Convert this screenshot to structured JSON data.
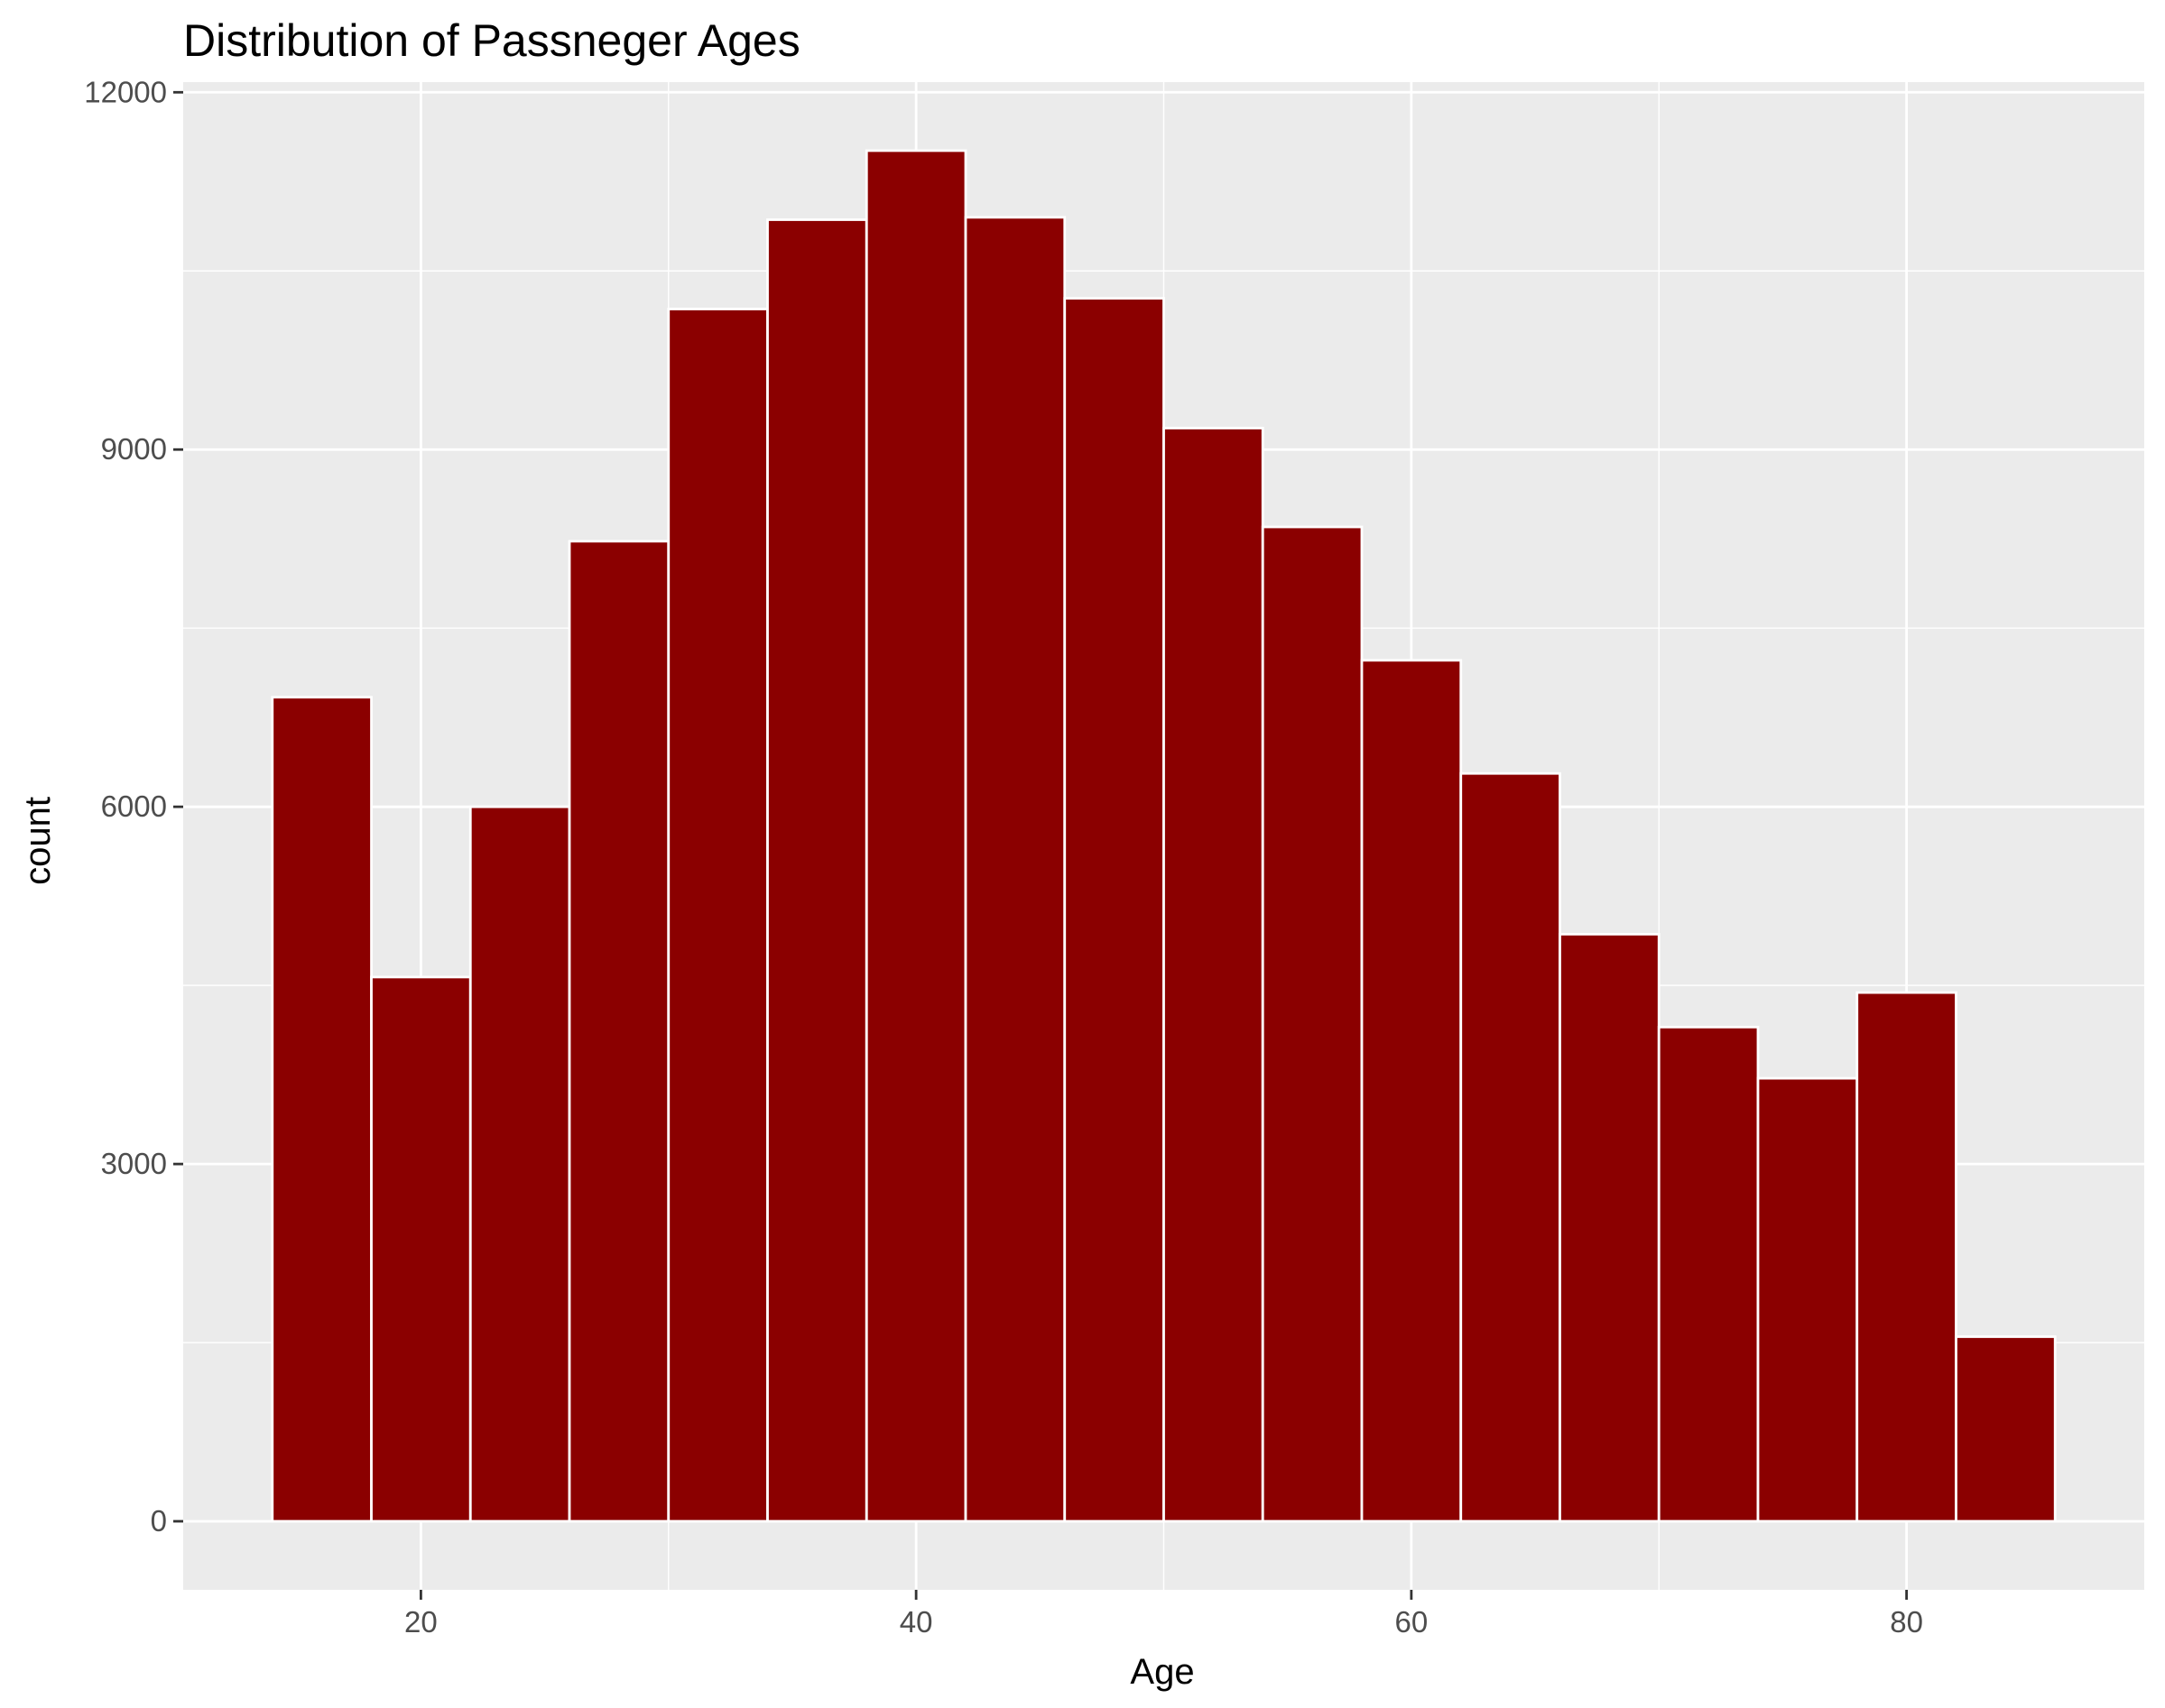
{
  "chart_data": {
    "type": "bar",
    "title": "Distribution of Passneger Ages",
    "xlabel": "Age",
    "ylabel": "count",
    "bin_width": 4,
    "bins": [
      {
        "x0": 14,
        "x1": 18,
        "count": 6920
      },
      {
        "x0": 18,
        "x1": 22,
        "count": 4570
      },
      {
        "x0": 22,
        "x1": 26,
        "count": 6000
      },
      {
        "x0": 26,
        "x1": 30,
        "count": 8230
      },
      {
        "x0": 30,
        "x1": 34,
        "count": 10180
      },
      {
        "x0": 34,
        "x1": 38,
        "count": 10930
      },
      {
        "x0": 38,
        "x1": 42,
        "count": 11510
      },
      {
        "x0": 42,
        "x1": 46,
        "count": 10950
      },
      {
        "x0": 46,
        "x1": 50,
        "count": 10270
      },
      {
        "x0": 50,
        "x1": 54,
        "count": 9180
      },
      {
        "x0": 54,
        "x1": 58,
        "count": 8350
      },
      {
        "x0": 58,
        "x1": 62,
        "count": 7230
      },
      {
        "x0": 62,
        "x1": 66,
        "count": 6280
      },
      {
        "x0": 66,
        "x1": 70,
        "count": 4930
      },
      {
        "x0": 70,
        "x1": 74,
        "count": 4150
      },
      {
        "x0": 74,
        "x1": 78,
        "count": 3720
      },
      {
        "x0": 78,
        "x1": 82,
        "count": 4440
      },
      {
        "x0": 82,
        "x1": 86,
        "count": 1550
      }
    ],
    "xlim": [
      10.4,
      89.6
    ],
    "ylim": [
      -575.5,
      12085.5
    ],
    "x_ticks": [
      20,
      40,
      60,
      80
    ],
    "x_tick_labels": [
      "20",
      "40",
      "60",
      "80"
    ],
    "x_minor_ticks": [
      10,
      30,
      50,
      70
    ],
    "y_ticks": [
      0,
      3000,
      6000,
      9000,
      12000
    ],
    "y_tick_labels": [
      "0",
      "3000",
      "6000",
      "9000",
      "12000"
    ],
    "y_minor_ticks": [
      1500,
      4500,
      7500,
      10500
    ],
    "grid": true,
    "legend": "none",
    "colors": {
      "bar_fill": "#8B0000",
      "bar_outline": "#ffffff",
      "panel_background": "#EBEBEB",
      "grid_major": "#ffffff",
      "grid_minor": "#ffffff",
      "tick_text": "#4d4d4d",
      "title_text": "#000000"
    }
  }
}
